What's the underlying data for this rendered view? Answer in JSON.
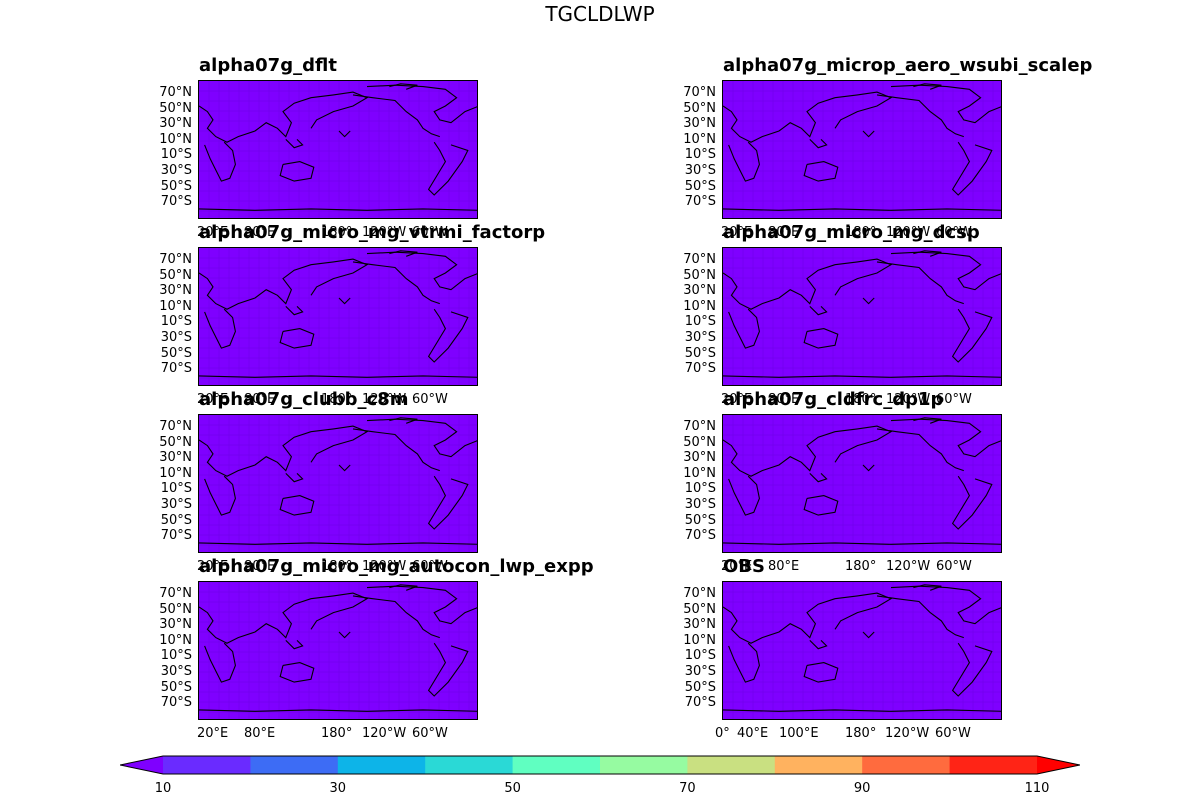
{
  "figure_title": "TGCLDLWP",
  "chart_data": {
    "type": "heatmap",
    "title": "TGCLDLWP",
    "field_value_range": [
      10,
      20
    ],
    "panels": [
      {
        "title": "alpha07g_dflt",
        "lon_labels": [
          "20°E",
          "80°E",
          "180°",
          "120°W",
          "60°W"
        ]
      },
      {
        "title": "alpha07g_microp_aero_wsubi_scalep",
        "lon_labels": [
          "20°E",
          "80°E",
          "180°",
          "120°W",
          "60°W"
        ]
      },
      {
        "title": "alpha07g_micro_mg_vtrmi_factorp",
        "lon_labels": [
          "20°E",
          "80°E",
          "180°",
          "120°W",
          "60°W"
        ]
      },
      {
        "title": "alpha07g_micro_mg_dcsp",
        "lon_labels": [
          "20°E",
          "80°E",
          "180°",
          "120°W",
          "60°W"
        ]
      },
      {
        "title": "alpha07g_clubb_c8m",
        "lon_labels": [
          "20°E",
          "80°E",
          "180°",
          "120°W",
          "60°W"
        ]
      },
      {
        "title": "alpha07g_cldfrc_dp1p",
        "lon_labels": [
          "20°E",
          "80°E",
          "180°",
          "120°W",
          "60°W"
        ]
      },
      {
        "title": "alpha07g_micro_mg_autocon_lwp_expp",
        "lon_labels": [
          "20°E",
          "80°E",
          "180°",
          "120°W",
          "60°W"
        ]
      },
      {
        "title": "OBS",
        "lon_labels": [
          "0°",
          "40°E",
          "100°E",
          "180°",
          "120°W",
          "60°W"
        ]
      }
    ],
    "lat_labels": [
      "70°N",
      "50°N",
      "30°N",
      "10°N",
      "10°S",
      "30°S",
      "50°S",
      "70°S"
    ],
    "colorbar": {
      "levels": [
        10,
        20,
        30,
        40,
        50,
        60,
        70,
        80,
        90,
        100,
        110
      ],
      "colors": [
        "#6a2bff",
        "#3d6cf5",
        "#0db4e8",
        "#2ad9d6",
        "#60ffc1",
        "#96fba1",
        "#c9e081",
        "#ffb25f",
        "#ff6b3e",
        "#ff2416"
      ],
      "under_color": "#7f00ff",
      "over_color": "#ff0000",
      "tick_labels": [
        "10",
        "30",
        "50",
        "70",
        "90",
        "110"
      ],
      "extend": "both"
    },
    "colors": {
      "field": "#7f00ff",
      "coast": "#000000"
    }
  }
}
